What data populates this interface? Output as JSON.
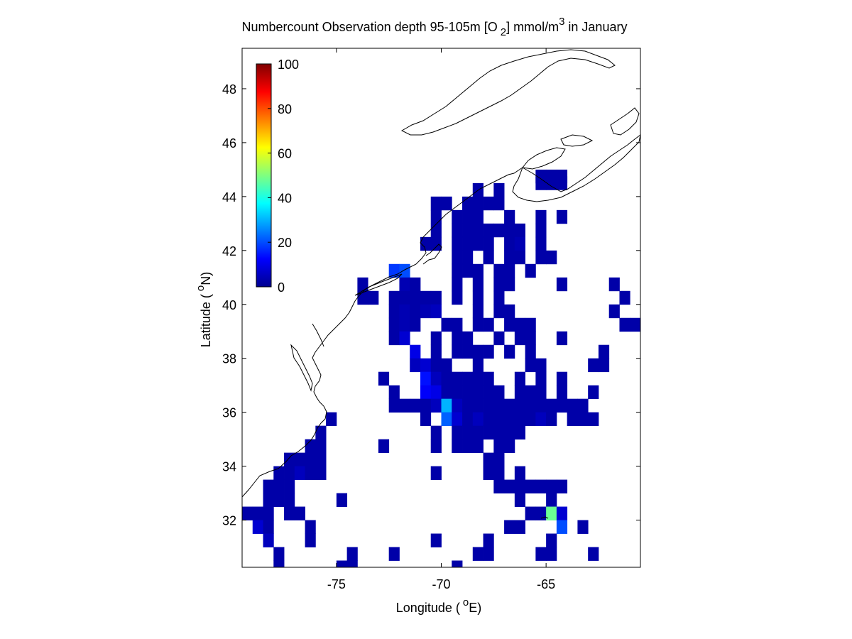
{
  "chart_data": {
    "type": "heatmap",
    "title": "Numbercount Observation depth 95-105m [O",
    "title_sub": "2",
    "title_unit": "] mmol/m",
    "title_sup": "3",
    "title_end": " in January",
    "xlabel": "Longitude (",
    "xlabel_sup": "o",
    "xlabel_end": "E)",
    "ylabel": "Latitude (",
    "ylabel_sup": "o",
    "ylabel_end": "N)",
    "xlim": [
      -79.5,
      -60.5
    ],
    "ylim": [
      30.25,
      49.5
    ],
    "x_ticks": [
      -75,
      -70,
      -65
    ],
    "y_ticks": [
      32,
      34,
      36,
      38,
      40,
      42,
      44,
      46,
      48
    ],
    "x_tick_labels": [
      "-75",
      "-70",
      "-65"
    ],
    "y_tick_labels": [
      "32",
      "34",
      "36",
      "38",
      "40",
      "42",
      "44",
      "46",
      "48"
    ],
    "colorbar": {
      "colormap": "jet",
      "range": [
        0,
        100
      ],
      "ticks": [
        0,
        20,
        40,
        60,
        80,
        100
      ],
      "tick_labels": [
        "0",
        "20",
        "40",
        "60",
        "80",
        "100"
      ],
      "placement": "top-left inside axes"
    },
    "grid": false,
    "cell_size_deg": 0.5,
    "cells": [
      [
        -65.25,
        44.75,
        4
      ],
      [
        -64.75,
        44.75,
        4
      ],
      [
        -64.25,
        44.75,
        4
      ],
      [
        -65.25,
        44.5,
        4
      ],
      [
        -64.75,
        44.5,
        4
      ],
      [
        -64.25,
        44.5,
        4
      ],
      [
        -68.25,
        44.25,
        4
      ],
      [
        -67.25,
        44.25,
        4
      ],
      [
        -68.75,
        43.75,
        4
      ],
      [
        -68.25,
        43.75,
        4
      ],
      [
        -70.25,
        43.75,
        4
      ],
      [
        -69.75,
        43.75,
        4
      ],
      [
        -68.25,
        43.25,
        4
      ],
      [
        -67.75,
        43.75,
        4
      ],
      [
        -67.25,
        43.75,
        4
      ],
      [
        -68.75,
        43.25,
        4
      ],
      [
        -66.75,
        43.25,
        4
      ],
      [
        -65.25,
        43.25,
        4
      ],
      [
        -64.25,
        43.25,
        4
      ],
      [
        -70.25,
        43.25,
        4
      ],
      [
        -69.25,
        43.25,
        4
      ],
      [
        -70.25,
        42.75,
        4
      ],
      [
        -69.25,
        42.75,
        4
      ],
      [
        -68.75,
        42.75,
        4
      ],
      [
        -68.25,
        42.75,
        4
      ],
      [
        -67.75,
        42.75,
        4
      ],
      [
        -67.25,
        42.75,
        4
      ],
      [
        -66.75,
        42.75,
        4
      ],
      [
        -66.25,
        42.75,
        4
      ],
      [
        -65.25,
        42.75,
        4
      ],
      [
        -70.75,
        42.25,
        4
      ],
      [
        -70.25,
        42.25,
        4
      ],
      [
        -69.25,
        42.25,
        4
      ],
      [
        -68.75,
        42.25,
        4
      ],
      [
        -68.25,
        42.25,
        4
      ],
      [
        -67.75,
        42.25,
        4
      ],
      [
        -66.75,
        42.25,
        4
      ],
      [
        -66.25,
        42.25,
        5
      ],
      [
        -65.25,
        42.25,
        4
      ],
      [
        -69.25,
        41.75,
        4
      ],
      [
        -68.75,
        41.75,
        4
      ],
      [
        -67.75,
        41.75,
        4
      ],
      [
        -66.75,
        41.75,
        4
      ],
      [
        -66.25,
        41.75,
        4
      ],
      [
        -65.25,
        41.75,
        4
      ],
      [
        -64.75,
        41.75,
        4
      ],
      [
        -72.25,
        41.25,
        18
      ],
      [
        -71.75,
        41.25,
        20
      ],
      [
        -69.25,
        41.25,
        4
      ],
      [
        -68.75,
        41.25,
        4
      ],
      [
        -68.25,
        41.25,
        4
      ],
      [
        -67.25,
        41.25,
        4
      ],
      [
        -66.75,
        41.25,
        4
      ],
      [
        -65.75,
        41.25,
        4
      ],
      [
        -73.75,
        40.75,
        4
      ],
      [
        -71.75,
        40.75,
        5
      ],
      [
        -71.25,
        40.75,
        4
      ],
      [
        -69.25,
        40.75,
        4
      ],
      [
        -68.25,
        40.75,
        4
      ],
      [
        -67.25,
        40.75,
        4
      ],
      [
        -66.75,
        40.75,
        4
      ],
      [
        -64.25,
        40.75,
        4
      ],
      [
        -61.75,
        40.75,
        4
      ],
      [
        -73.75,
        40.25,
        4
      ],
      [
        -73.25,
        40.25,
        4
      ],
      [
        -72.25,
        40.25,
        4
      ],
      [
        -71.75,
        40.25,
        4
      ],
      [
        -71.25,
        40.25,
        4
      ],
      [
        -70.75,
        40.25,
        4
      ],
      [
        -70.25,
        40.25,
        4
      ],
      [
        -69.25,
        40.25,
        4
      ],
      [
        -68.25,
        40.25,
        4
      ],
      [
        -67.25,
        40.25,
        4
      ],
      [
        -61.25,
        40.25,
        4
      ],
      [
        -72.25,
        39.75,
        4
      ],
      [
        -71.75,
        39.75,
        5
      ],
      [
        -71.25,
        39.75,
        4
      ],
      [
        -70.75,
        39.75,
        5
      ],
      [
        -70.25,
        39.75,
        6
      ],
      [
        -68.25,
        39.75,
        4
      ],
      [
        -67.25,
        39.75,
        4
      ],
      [
        -66.75,
        39.75,
        4
      ],
      [
        -61.75,
        39.75,
        4
      ],
      [
        -72.25,
        39.25,
        4
      ],
      [
        -71.75,
        39.25,
        5
      ],
      [
        -71.25,
        39.25,
        4
      ],
      [
        -69.75,
        39.25,
        4
      ],
      [
        -69.25,
        39.25,
        4
      ],
      [
        -68.25,
        39.25,
        4
      ],
      [
        -67.75,
        39.25,
        4
      ],
      [
        -66.75,
        39.25,
        4
      ],
      [
        -66.25,
        39.25,
        4
      ],
      [
        -65.75,
        39.25,
        4
      ],
      [
        -61.25,
        39.25,
        4
      ],
      [
        -60.75,
        39.25,
        4
      ],
      [
        -60.25,
        39.25,
        4
      ],
      [
        -72.25,
        38.75,
        4
      ],
      [
        -71.75,
        38.75,
        8
      ],
      [
        -70.25,
        38.75,
        4
      ],
      [
        -69.25,
        38.75,
        4
      ],
      [
        -68.75,
        38.75,
        4
      ],
      [
        -67.25,
        38.75,
        4
      ],
      [
        -66.25,
        38.75,
        4
      ],
      [
        -65.75,
        38.75,
        4
      ],
      [
        -64.25,
        38.75,
        4
      ],
      [
        -60.25,
        38.75,
        4
      ],
      [
        -71.25,
        38.25,
        10
      ],
      [
        -70.25,
        38.25,
        4
      ],
      [
        -69.25,
        38.25,
        4
      ],
      [
        -68.75,
        38.25,
        4
      ],
      [
        -68.25,
        38.25,
        4
      ],
      [
        -67.75,
        38.25,
        4
      ],
      [
        -66.75,
        38.25,
        4
      ],
      [
        -65.75,
        38.25,
        4
      ],
      [
        -62.25,
        38.25,
        4
      ],
      [
        -71.25,
        37.75,
        6
      ],
      [
        -70.75,
        37.75,
        8
      ],
      [
        -70.25,
        37.75,
        4
      ],
      [
        -69.75,
        37.75,
        4
      ],
      [
        -68.25,
        37.75,
        4
      ],
      [
        -65.75,
        37.75,
        4
      ],
      [
        -65.25,
        37.75,
        4
      ],
      [
        -62.75,
        37.75,
        4
      ],
      [
        -62.25,
        37.75,
        4
      ],
      [
        -72.75,
        37.25,
        4
      ],
      [
        -70.75,
        37.25,
        14
      ],
      [
        -70.25,
        37.25,
        6
      ],
      [
        -69.75,
        37.25,
        4
      ],
      [
        -69.25,
        37.25,
        4
      ],
      [
        -68.75,
        37.25,
        4
      ],
      [
        -68.25,
        37.25,
        4
      ],
      [
        -67.75,
        37.25,
        4
      ],
      [
        -66.25,
        37.25,
        4
      ],
      [
        -65.25,
        37.25,
        4
      ],
      [
        -64.25,
        37.25,
        4
      ],
      [
        -72.25,
        36.75,
        4
      ],
      [
        -70.75,
        36.75,
        12
      ],
      [
        -70.25,
        36.75,
        10
      ],
      [
        -69.75,
        36.75,
        4
      ],
      [
        -69.25,
        36.75,
        4
      ],
      [
        -68.75,
        36.75,
        4
      ],
      [
        -68.25,
        36.75,
        4
      ],
      [
        -67.75,
        36.75,
        4
      ],
      [
        -67.25,
        36.75,
        4
      ],
      [
        -66.25,
        36.75,
        4
      ],
      [
        -65.75,
        36.75,
        4
      ],
      [
        -65.25,
        36.75,
        4
      ],
      [
        -64.25,
        36.75,
        4
      ],
      [
        -62.75,
        36.75,
        4
      ],
      [
        -60.25,
        36.75,
        4
      ],
      [
        -72.25,
        36.25,
        4
      ],
      [
        -71.75,
        36.25,
        4
      ],
      [
        -71.25,
        36.25,
        4
      ],
      [
        -70.75,
        36.25,
        4
      ],
      [
        -70.25,
        36.25,
        6
      ],
      [
        -69.75,
        36.25,
        30
      ],
      [
        -69.25,
        36.25,
        6
      ],
      [
        -68.75,
        36.25,
        4
      ],
      [
        -68.25,
        36.25,
        4
      ],
      [
        -67.75,
        36.25,
        4
      ],
      [
        -67.25,
        36.25,
        4
      ],
      [
        -66.75,
        36.25,
        4
      ],
      [
        -66.25,
        36.25,
        4
      ],
      [
        -65.75,
        36.25,
        4
      ],
      [
        -65.25,
        36.25,
        4
      ],
      [
        -64.75,
        36.25,
        4
      ],
      [
        -64.25,
        36.25,
        4
      ],
      [
        -63.75,
        36.25,
        4
      ],
      [
        -63.25,
        36.25,
        4
      ],
      [
        -75.25,
        35.75,
        4
      ],
      [
        -70.75,
        35.75,
        4
      ],
      [
        -69.75,
        35.75,
        22
      ],
      [
        -69.25,
        35.75,
        8
      ],
      [
        -68.75,
        35.75,
        4
      ],
      [
        -68.25,
        35.75,
        6
      ],
      [
        -67.75,
        35.75,
        4
      ],
      [
        -67.25,
        35.75,
        4
      ],
      [
        -66.75,
        35.75,
        4
      ],
      [
        -66.25,
        35.75,
        4
      ],
      [
        -65.75,
        35.75,
        4
      ],
      [
        -65.25,
        35.75,
        6
      ],
      [
        -64.75,
        35.75,
        4
      ],
      [
        -63.75,
        35.75,
        4
      ],
      [
        -63.25,
        35.75,
        4
      ],
      [
        -62.75,
        35.75,
        4
      ],
      [
        -60.25,
        35.75,
        6
      ],
      [
        -75.75,
        35.25,
        4
      ],
      [
        -70.25,
        35.25,
        4
      ],
      [
        -69.25,
        35.25,
        4
      ],
      [
        -68.75,
        35.25,
        4
      ],
      [
        -68.25,
        35.25,
        4
      ],
      [
        -67.75,
        35.25,
        4
      ],
      [
        -67.25,
        35.25,
        4
      ],
      [
        -66.75,
        35.25,
        4
      ],
      [
        -66.25,
        35.25,
        4
      ],
      [
        -76.25,
        34.75,
        4
      ],
      [
        -75.75,
        34.75,
        4
      ],
      [
        -72.75,
        34.75,
        4
      ],
      [
        -70.25,
        34.75,
        4
      ],
      [
        -69.25,
        34.75,
        4
      ],
      [
        -68.75,
        34.75,
        4
      ],
      [
        -68.25,
        34.75,
        4
      ],
      [
        -67.25,
        34.75,
        4
      ],
      [
        -66.75,
        34.75,
        4
      ],
      [
        -77.25,
        34.25,
        4
      ],
      [
        -76.75,
        34.25,
        4
      ],
      [
        -76.25,
        34.25,
        4
      ],
      [
        -75.75,
        34.25,
        4
      ],
      [
        -67.75,
        34.25,
        4
      ],
      [
        -67.25,
        34.25,
        4
      ],
      [
        -77.75,
        33.75,
        4
      ],
      [
        -77.25,
        33.75,
        4
      ],
      [
        -76.75,
        33.75,
        6
      ],
      [
        -76.25,
        33.75,
        4
      ],
      [
        -75.75,
        33.75,
        4
      ],
      [
        -70.25,
        33.75,
        4
      ],
      [
        -67.75,
        33.75,
        4
      ],
      [
        -67.25,
        33.75,
        4
      ],
      [
        -66.25,
        33.75,
        4
      ],
      [
        -78.25,
        33.25,
        4
      ],
      [
        -77.75,
        33.25,
        4
      ],
      [
        -77.25,
        33.25,
        4
      ],
      [
        -67.25,
        33.25,
        4
      ],
      [
        -66.75,
        33.25,
        4
      ],
      [
        -66.25,
        33.25,
        4
      ],
      [
        -65.75,
        33.25,
        4
      ],
      [
        -65.25,
        33.25,
        4
      ],
      [
        -64.75,
        33.25,
        4
      ],
      [
        -64.25,
        33.25,
        4
      ],
      [
        -78.25,
        32.75,
        4
      ],
      [
        -77.75,
        32.75,
        4
      ],
      [
        -77.25,
        32.75,
        4
      ],
      [
        -74.75,
        32.75,
        4
      ],
      [
        -66.25,
        32.75,
        4
      ],
      [
        -64.75,
        32.75,
        4
      ],
      [
        -79.25,
        32.25,
        4
      ],
      [
        -78.75,
        32.25,
        4
      ],
      [
        -78.25,
        32.25,
        4
      ],
      [
        -77.25,
        32.25,
        4
      ],
      [
        -76.75,
        32.25,
        4
      ],
      [
        -65.75,
        32.25,
        4
      ],
      [
        -65.25,
        32.25,
        4
      ],
      [
        -64.75,
        32.25,
        48
      ],
      [
        -64.25,
        32.25,
        8
      ],
      [
        -78.75,
        31.75,
        8
      ],
      [
        -78.25,
        31.75,
        4
      ],
      [
        -76.25,
        31.75,
        4
      ],
      [
        -66.75,
        31.75,
        4
      ],
      [
        -66.25,
        31.75,
        4
      ],
      [
        -64.25,
        31.75,
        20
      ],
      [
        -63.25,
        31.75,
        4
      ],
      [
        -78.25,
        31.25,
        6
      ],
      [
        -76.25,
        31.25,
        4
      ],
      [
        -70.25,
        31.25,
        4
      ],
      [
        -67.75,
        31.25,
        4
      ],
      [
        -64.75,
        31.25,
        4
      ],
      [
        -77.75,
        30.75,
        4
      ],
      [
        -74.25,
        30.75,
        4
      ],
      [
        -72.25,
        30.75,
        4
      ],
      [
        -68.25,
        30.75,
        4
      ],
      [
        -67.75,
        30.75,
        4
      ],
      [
        -65.25,
        30.75,
        4
      ],
      [
        -64.75,
        30.75,
        4
      ],
      [
        -62.75,
        30.75,
        4
      ],
      [
        -60.25,
        30.75,
        4
      ],
      [
        -77.75,
        30.25,
        4
      ],
      [
        -74.75,
        30.25,
        4
      ],
      [
        -74.25,
        30.25,
        4
      ],
      [
        -69.25,
        30.25,
        4
      ]
    ]
  }
}
